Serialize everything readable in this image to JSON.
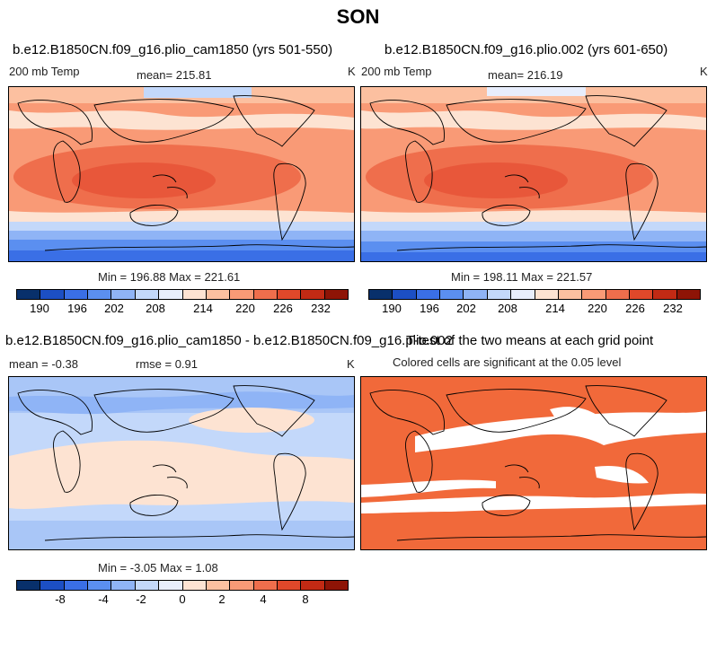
{
  "season_title": "SON",
  "panels": [
    {
      "title": "b.e12.B1850CN.f09_g16.plio_cam1850 (yrs 501-550)",
      "variable": "200 mb Temp",
      "stat": "mean= 215.81",
      "units": "K",
      "minmax": "Min = 196.88 Max = 221.61"
    },
    {
      "title": "b.e12.B1850CN.f09_g16.plio.002 (yrs 601-650)",
      "variable": "200 mb Temp",
      "stat": "mean= 216.19",
      "units": "K",
      "minmax": "Min = 198.11 Max = 221.57"
    },
    {
      "title": "b.e12.B1850CN.f09_g16.plio_cam1850 - b.e12.B1850CN.f09_g16.plio.002",
      "mean": "mean =  -0.38",
      "rmse": "rmse =    0.91",
      "units": "K",
      "minmax": "Min =  -3.05 Max =    1.08"
    },
    {
      "title": "T-test of the two means at each grid point",
      "subtitle": "Colored cells are significant at the 0.05 level"
    }
  ],
  "colors": {
    "scale": [
      "#08306b",
      "#1c4fc4",
      "#3a6fe6",
      "#5b8ff0",
      "#8fb4f6",
      "#c3d8fa",
      "#e8eefc",
      "#fde3d2",
      "#fcc0a0",
      "#f99a76",
      "#ef6e4c",
      "#e0482a",
      "#c22a14",
      "#8e1406"
    ],
    "significant": "#f1693a"
  },
  "chart_data": [
    {
      "type": "heatmap",
      "title": "b.e12.B1850CN.f09_g16.plio_cam1850 (yrs 501-550)",
      "variable": "200 mb Temp",
      "units": "K",
      "mean": 215.81,
      "min": 196.88,
      "max": 221.61,
      "colorbar_ticks": [
        "190",
        "196",
        "202",
        "208",
        "214",
        "220",
        "226",
        "232"
      ],
      "zonal_band_levels_north_to_south": [
        212,
        209,
        214,
        217,
        219,
        219,
        217,
        214,
        208,
        202,
        196
      ]
    },
    {
      "type": "heatmap",
      "title": "b.e12.B1850CN.f09_g16.plio.002 (yrs 601-650)",
      "variable": "200 mb Temp",
      "units": "K",
      "mean": 216.19,
      "min": 198.11,
      "max": 221.57,
      "colorbar_ticks": [
        "190",
        "196",
        "202",
        "208",
        "214",
        "220",
        "226",
        "232"
      ],
      "zonal_band_levels_north_to_south": [
        213,
        210,
        214,
        217,
        219,
        219,
        217,
        214,
        209,
        203,
        198
      ]
    },
    {
      "type": "heatmap",
      "title": "b.e12.B1850CN.f09_g16.plio_cam1850 - b.e12.B1850CN.f09_g16.plio.002",
      "units": "K",
      "mean": -0.38,
      "rmse": 0.91,
      "min": -3.05,
      "max": 1.08,
      "colorbar_ticks": [
        "-8",
        "-4",
        "-2",
        "0",
        "2",
        "4",
        "8"
      ],
      "zonal_band_levels_north_to_south": [
        -1.5,
        -0.8,
        -0.5,
        0.3,
        0.3,
        0.3,
        -0.3,
        -0.5,
        -0.8,
        -1.5
      ]
    },
    {
      "type": "heatmap",
      "title": "T-test of the two means at each grid point",
      "note": "Colored cells are significant at the 0.05 level"
    }
  ]
}
